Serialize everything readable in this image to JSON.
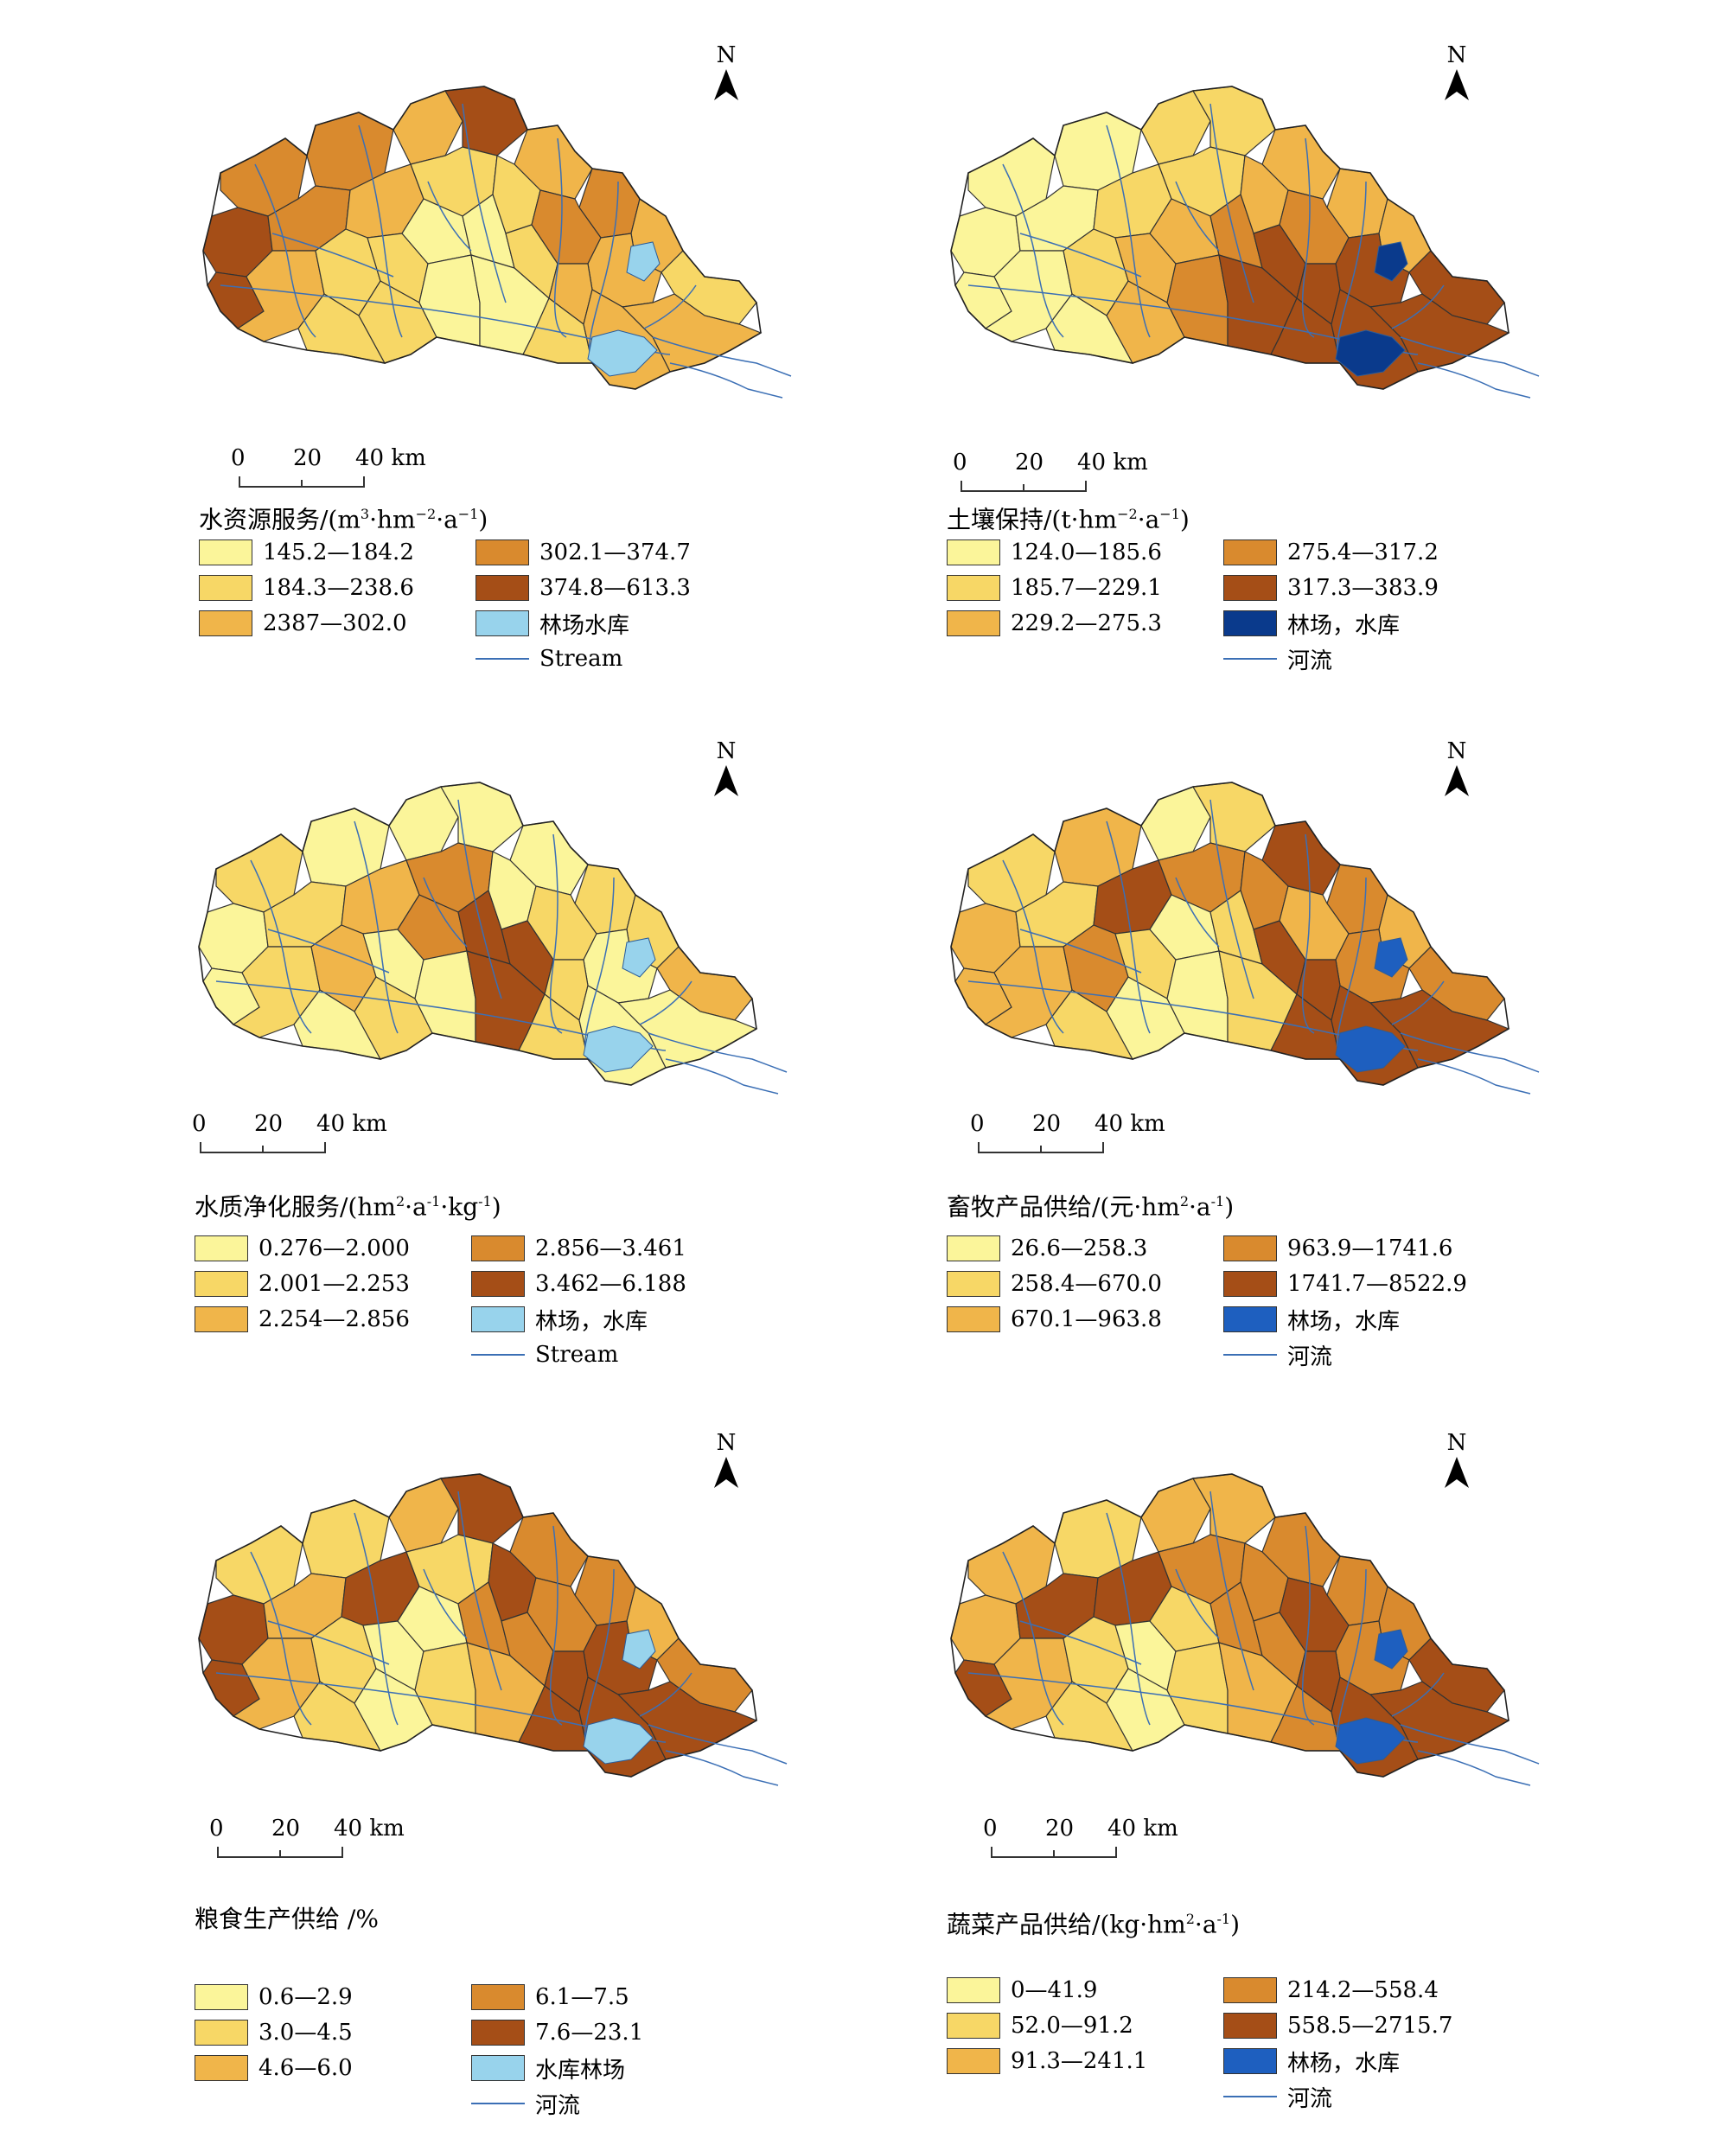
{
  "colors": {
    "c1": "#fbf59a",
    "c2": "#f7d766",
    "c3": "#f0b54a",
    "c4": "#d98a2e",
    "c5": "#a54e17",
    "water_light": "#98d3ec",
    "water_dark": "#0a3a8c",
    "water_mid": "#1e5fbf",
    "stream": "#3b6fb5"
  },
  "scale_bar": {
    "labels": [
      "0",
      "20",
      "40 km"
    ]
  },
  "north_label": "N",
  "panels": [
    {
      "id": "water-resource",
      "title_main": "水资源服务/(m",
      "title_rest": [
        {
          "t": "3",
          "sup": true
        },
        {
          "t": "·hm"
        },
        {
          "t": "−2",
          "sup": true
        },
        {
          "t": "·a"
        },
        {
          "t": "−1",
          "sup": true
        },
        {
          "t": ")"
        }
      ],
      "water_color": "water_light",
      "legend": [
        {
          "label": "145.2—184.2",
          "color": "c1"
        },
        {
          "label": "184.3—238.6",
          "color": "c2"
        },
        {
          "label": "2387—302.0",
          "color": "c3"
        },
        {
          "label": "302.1—374.7",
          "color": "c4"
        },
        {
          "label": "374.8—613.3",
          "color": "c5"
        },
        {
          "label": "林场水库",
          "color": "water_light"
        },
        {
          "label": "Stream",
          "line": true
        }
      ]
    },
    {
      "id": "soil-retention",
      "title_main": "土壤保持/(t·hm",
      "title_rest": [
        {
          "t": "−2",
          "sup": true
        },
        {
          "t": "·a"
        },
        {
          "t": "−1",
          "sup": true
        },
        {
          "t": ")"
        }
      ],
      "water_color": "water_dark",
      "legend": [
        {
          "label": "124.0—185.6",
          "color": "c1"
        },
        {
          "label": "185.7—229.1",
          "color": "c2"
        },
        {
          "label": "229.2—275.3",
          "color": "c3"
        },
        {
          "label": "275.4—317.2",
          "color": "c4"
        },
        {
          "label": "317.3—383.9",
          "color": "c5"
        },
        {
          "label": "林场，水库",
          "color": "water_dark"
        },
        {
          "label": "河流",
          "line": true
        }
      ]
    },
    {
      "id": "water-purification",
      "title_main": "水质净化服务/(hm",
      "title_rest": [
        {
          "t": "2",
          "sup": true
        },
        {
          "t": "·a"
        },
        {
          "t": "-1",
          "sup": true
        },
        {
          "t": "·kg"
        },
        {
          "t": "-1",
          "sup": true
        },
        {
          "t": ")"
        }
      ],
      "water_color": "water_light",
      "legend": [
        {
          "label": "0.276—2.000",
          "color": "c1"
        },
        {
          "label": "2.001—2.253",
          "color": "c2"
        },
        {
          "label": "2.254—2.856",
          "color": "c3"
        },
        {
          "label": "2.856—3.461",
          "color": "c4"
        },
        {
          "label": "3.462—6.188",
          "color": "c5"
        },
        {
          "label": "林场，水库",
          "color": "water_light"
        },
        {
          "label": "Stream",
          "line": true
        }
      ]
    },
    {
      "id": "livestock-supply",
      "title_main": "畜牧产品供给/(元·hm",
      "title_rest": [
        {
          "t": "2",
          "sup": true
        },
        {
          "t": "·a"
        },
        {
          "t": "-1",
          "sup": true
        },
        {
          "t": ")"
        }
      ],
      "water_color": "water_mid",
      "legend": [
        {
          "label": "26.6—258.3",
          "color": "c1"
        },
        {
          "label": "258.4—670.0",
          "color": "c2"
        },
        {
          "label": "670.1—963.8",
          "color": "c3"
        },
        {
          "label": "963.9—1741.6",
          "color": "c4"
        },
        {
          "label": "1741.7—8522.9",
          "color": "c5"
        },
        {
          "label": "林场，水库",
          "color": "water_mid"
        },
        {
          "label": "河流",
          "line": true
        }
      ]
    },
    {
      "id": "grain-supply",
      "title_main": "粮食生产供给 /%",
      "title_rest": [],
      "water_color": "water_light",
      "legend": [
        {
          "label": "0.6—2.9",
          "color": "c1"
        },
        {
          "label": "3.0—4.5",
          "color": "c2"
        },
        {
          "label": "4.6—6.0",
          "color": "c3"
        },
        {
          "label": "6.1—7.5",
          "color": "c4"
        },
        {
          "label": "7.6—23.1",
          "color": "c5"
        },
        {
          "label": "水库林场",
          "color": "water_light"
        },
        {
          "label": "河流",
          "line": true
        }
      ]
    },
    {
      "id": "vegetable-supply",
      "title_main": "蔬菜产品供给/(kg·hm",
      "title_rest": [
        {
          "t": "2",
          "sup": true
        },
        {
          "t": "·a"
        },
        {
          "t": "-1",
          "sup": true
        },
        {
          "t": ")"
        }
      ],
      "water_color": "water_mid",
      "legend": [
        {
          "label": "0—41.9",
          "color": "c1"
        },
        {
          "label": "52.0—91.2",
          "color": "c2"
        },
        {
          "label": "91.3—241.1",
          "color": "c3"
        },
        {
          "label": "214.2—558.4",
          "color": "c4"
        },
        {
          "label": "558.5—2715.7",
          "color": "c5"
        },
        {
          "label": "林杨，水库",
          "color": "water_mid"
        },
        {
          "label": "河流",
          "line": true
        }
      ]
    }
  ]
}
